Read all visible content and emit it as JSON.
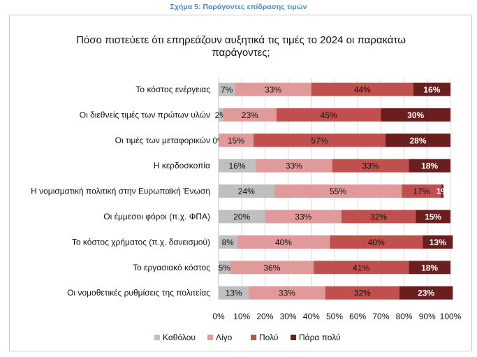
{
  "caption": "Σχήμα 5: Παράγοντες επίδρασης τιμών",
  "chart_data": {
    "type": "bar",
    "stacked": true,
    "orientation": "horizontal",
    "title": "Πόσο πιστεύετε ότι επηρεάζουν αυξητικά τις τιμές το 2024 οι παρακάτω παράγοντες;",
    "xlim": [
      0,
      100
    ],
    "x_ticks": [
      "0%",
      "10%",
      "20%",
      "30%",
      "40%",
      "50%",
      "60%",
      "70%",
      "80%",
      "90%",
      "100%"
    ],
    "legend_position": "bottom",
    "categories": [
      "Το κόστος ενέργειας",
      "Οι διεθνείς τιμές των πρώτων υλών",
      "Οι τιμές των μεταφορικών",
      "Η κερδοσκοπία",
      "Η νομισματική πολιτική στην Ευρωπαϊκή Ένωση",
      "Οι έμμεσοι φόροι (π.χ. ΦΠΑ)",
      "Το κόστος χρήματος (π.χ. δανεισμού)",
      "Το εργασιακό κόστος",
      "Οι νομοθετικές ρυθμίσεις της πολιτείας"
    ],
    "series": [
      {
        "name": "Καθόλου",
        "color": "#bfbfbf",
        "text_color": "#111111",
        "values": [
          7,
          2,
          0,
          16,
          24,
          20,
          8,
          5,
          13
        ]
      },
      {
        "name": "Λίγο",
        "color": "#e09a9a",
        "text_color": "#111111",
        "values": [
          33,
          23,
          15,
          33,
          55,
          33,
          40,
          36,
          33
        ]
      },
      {
        "name": "Πολύ",
        "color": "#c0504d",
        "text_color": "#111111",
        "values": [
          44,
          45,
          57,
          33,
          17,
          32,
          40,
          41,
          32
        ]
      },
      {
        "name": "Πάρα πολύ",
        "color": "#6b1e1e",
        "text_color": "#ffffff",
        "values": [
          16,
          30,
          28,
          18,
          1,
          15,
          13,
          18,
          23
        ]
      }
    ]
  }
}
